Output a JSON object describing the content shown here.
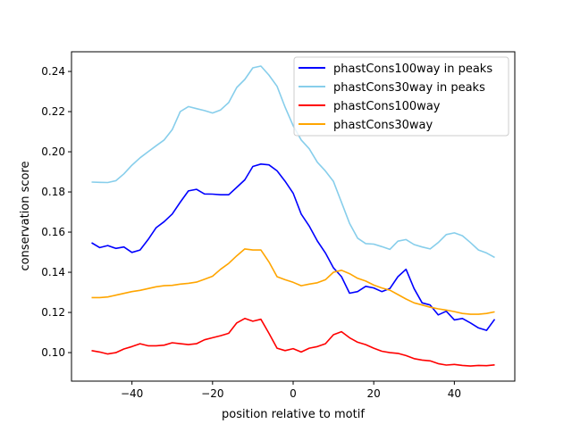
{
  "chart_data": {
    "type": "line",
    "title": "",
    "xlabel": "position relative to motif",
    "ylabel": "conservation score",
    "xlim": [
      -55,
      55
    ],
    "ylim": [
      0.0858,
      0.2498
    ],
    "xticks": [
      -40,
      -20,
      0,
      20,
      40
    ],
    "xtick_labels": [
      "−40",
      "−20",
      "0",
      "20",
      "40"
    ],
    "yticks": [
      0.1,
      0.12,
      0.14,
      0.16,
      0.18,
      0.2,
      0.22,
      0.24
    ],
    "ytick_labels": [
      "0.10",
      "0.12",
      "0.14",
      "0.16",
      "0.18",
      "0.20",
      "0.22",
      "0.24"
    ],
    "grid": false,
    "legend_position": "top-right",
    "x": [
      -50,
      -48,
      -46,
      -44,
      -42,
      -40,
      -38,
      -36,
      -34,
      -32,
      -30,
      -28,
      -26,
      -24,
      -22,
      -20,
      -18,
      -16,
      -14,
      -12,
      -10,
      -8,
      -6,
      -4,
      -2,
      0,
      2,
      4,
      6,
      8,
      10,
      12,
      14,
      16,
      18,
      20,
      22,
      24,
      26,
      28,
      30,
      32,
      34,
      36,
      38,
      40,
      42,
      44,
      46,
      48,
      50
    ],
    "series": [
      {
        "name": "phastCons100way in peaks",
        "color": "#0000ff",
        "values": [
          0.1547,
          0.1523,
          0.1533,
          0.1519,
          0.1526,
          0.1499,
          0.1511,
          0.1563,
          0.1622,
          0.1652,
          0.169,
          0.1749,
          0.1805,
          0.1813,
          0.179,
          0.1789,
          0.1786,
          0.1786,
          0.1823,
          0.186,
          0.1927,
          0.1939,
          0.1935,
          0.1905,
          0.1853,
          0.1794,
          0.169,
          0.163,
          0.1556,
          0.1496,
          0.1422,
          0.1378,
          0.1296,
          0.1304,
          0.133,
          0.1322,
          0.1304,
          0.1319,
          0.1378,
          0.1415,
          0.1319,
          0.1248,
          0.1237,
          0.1188,
          0.1206,
          0.1163,
          0.117,
          0.1148,
          0.1123,
          0.1111,
          0.1166
        ]
      },
      {
        "name": "phastCons30way in peaks",
        "color": "#87ceeb",
        "values": [
          0.1849,
          0.1848,
          0.1847,
          0.1856,
          0.189,
          0.1933,
          0.197,
          0.2,
          0.203,
          0.2059,
          0.211,
          0.22,
          0.2225,
          0.2215,
          0.2205,
          0.2193,
          0.2208,
          0.2245,
          0.232,
          0.236,
          0.2418,
          0.2427,
          0.2382,
          0.2326,
          0.2222,
          0.213,
          0.2059,
          0.2015,
          0.1948,
          0.1904,
          0.1852,
          0.1748,
          0.1644,
          0.157,
          0.1543,
          0.154,
          0.1528,
          0.1514,
          0.1555,
          0.1563,
          0.1538,
          0.1526,
          0.1516,
          0.1548,
          0.1588,
          0.1596,
          0.1582,
          0.1548,
          0.1511,
          0.1496,
          0.1474
        ]
      },
      {
        "name": "phastCons100way",
        "color": "#ff0000",
        "values": [
          0.101,
          0.1003,
          0.0993,
          0.1,
          0.1018,
          0.103,
          0.1044,
          0.1034,
          0.1034,
          0.1037,
          0.1049,
          0.1044,
          0.104,
          0.1044,
          0.1064,
          0.1074,
          0.1084,
          0.1096,
          0.1148,
          0.117,
          0.1156,
          0.1166,
          0.1096,
          0.1022,
          0.101,
          0.102,
          0.1003,
          0.1022,
          0.103,
          0.1044,
          0.1089,
          0.1104,
          0.1074,
          0.1052,
          0.104,
          0.1022,
          0.1007,
          0.1,
          0.0996,
          0.0985,
          0.097,
          0.0963,
          0.0959,
          0.0945,
          0.0938,
          0.0941,
          0.0936,
          0.0933,
          0.0936,
          0.0935,
          0.0939
        ]
      },
      {
        "name": "phastCons30way",
        "color": "#ffa500",
        "values": [
          0.1274,
          0.1274,
          0.1277,
          0.1286,
          0.1295,
          0.1304,
          0.131,
          0.1319,
          0.1328,
          0.1333,
          0.1335,
          0.1341,
          0.1345,
          0.1351,
          0.1365,
          0.138,
          0.1415,
          0.1444,
          0.1482,
          0.1516,
          0.1511,
          0.1511,
          0.1452,
          0.1378,
          0.1363,
          0.135,
          0.1333,
          0.1341,
          0.1348,
          0.1363,
          0.14,
          0.141,
          0.1393,
          0.137,
          0.1356,
          0.1336,
          0.1322,
          0.1311,
          0.1289,
          0.1267,
          0.1248,
          0.1237,
          0.1226,
          0.1218,
          0.1212,
          0.1204,
          0.1195,
          0.1191,
          0.1191,
          0.1195,
          0.1203
        ]
      }
    ]
  }
}
